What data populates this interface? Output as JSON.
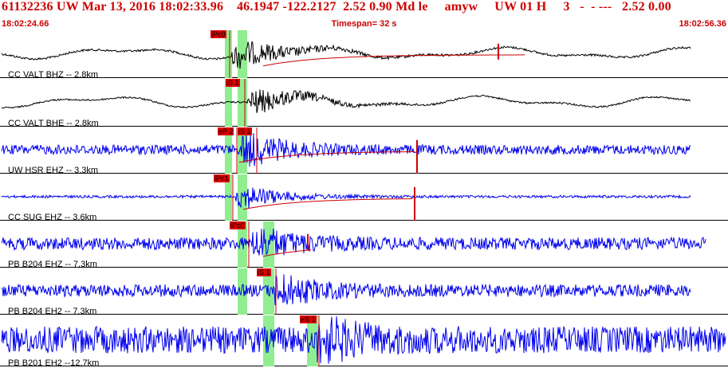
{
  "header": {
    "title": "61132236 UW Mar 13, 2016 18:02:33.96    46.1947 -122.2127  2.52 0.90 Md le     amyw     UW 01 H     3   -  - ---   2.52 0.00",
    "start_time": "18:02:24.66",
    "timespan": "Timespan=  32 s",
    "end_time": "18:02:56.36"
  },
  "colors": {
    "header_text": "#cc0000",
    "trace_black": "#000000",
    "trace_blue": "#0000ee",
    "pick_flag": "#dd0000",
    "pick_window": "#90ee90",
    "coda_line": "#cc0000"
  },
  "traces": [
    {
      "label": "CC VALT BHZ -- 2.8km",
      "color": "black",
      "picks": [
        "iPc0"
      ]
    },
    {
      "label": "CC VALT BHE -- 2.8km",
      "color": "black",
      "picks": [
        "iS 1"
      ]
    },
    {
      "label": "UW HSR EHZ -- 3.3km",
      "color": "blue",
      "picks": [
        "eP 2",
        "iS 1"
      ]
    },
    {
      "label": "CC SUG EHZ -- 3.6km",
      "color": "blue",
      "picks": [
        "iPc1"
      ]
    },
    {
      "label": "PB B204 EHZ -- 7.3km",
      "color": "blue",
      "picks": [
        "iPc0"
      ]
    },
    {
      "label": "PB B204 EH2 -- 7.3km",
      "color": "blue",
      "picks": [
        "iS 1"
      ]
    },
    {
      "label": "PB B201 EH2 --12.7km",
      "color": "blue",
      "picks": [
        "eS 1"
      ]
    }
  ]
}
